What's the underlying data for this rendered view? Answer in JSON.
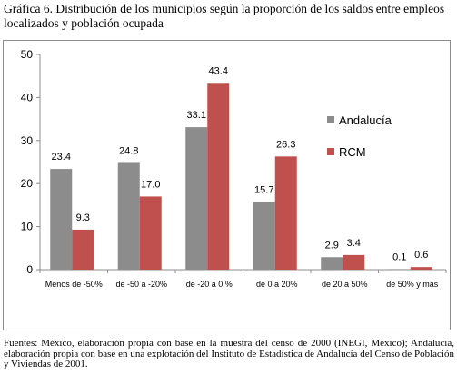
{
  "title": "Gráfica 6. Distribución de los municipios según la proporción de los saldos entre empleos localizados y población ocupada",
  "source": "Fuentes: México, elaboración propia con base en la muestra del censo de 2000 (INEGI, México); Andalucía, elaboración propia con base en una explotación del Instituto de Estadística de Andalucía del Censo de Población y Viviendas de 2001.",
  "chart_data": {
    "type": "bar",
    "categories": [
      "Menos de -50%",
      "de -50 a -20%",
      "de -20 a 0 %",
      "de 0 a 20%",
      "de 20 a 50%",
      "de 50% y más"
    ],
    "series": [
      {
        "name": "Andalucía",
        "values": [
          23.4,
          24.8,
          33.1,
          15.7,
          2.9,
          0.1
        ],
        "color": "#8c8c8c"
      },
      {
        "name": "RCM",
        "values": [
          9.3,
          17.0,
          43.4,
          26.3,
          3.4,
          0.6
        ],
        "color": "#c0504d"
      }
    ],
    "value_labels": [
      [
        "23.4",
        "24.8",
        "33.1",
        "15.7",
        "2.9",
        "0.1"
      ],
      [
        "9.3",
        "17.0",
        "43.4",
        "26.3",
        "3.4",
        "0.6"
      ]
    ],
    "ylim": [
      0,
      50
    ],
    "yticks": [
      "0",
      "10",
      "20",
      "30",
      "40",
      "50"
    ],
    "grid": false,
    "legend_position": "right"
  }
}
